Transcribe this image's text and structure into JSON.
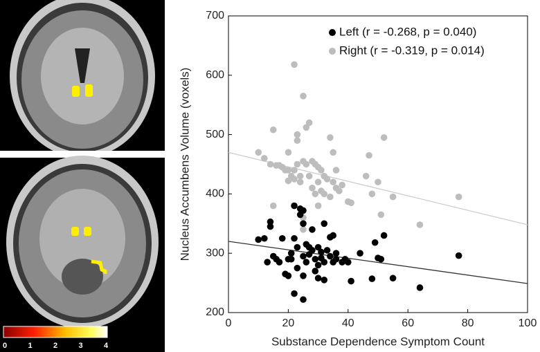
{
  "colorbar": {
    "ticks": [
      0,
      1,
      2,
      3,
      4
    ]
  },
  "chart_data": {
    "type": "scatter",
    "x_label": "Substance Dependence Symptom Count",
    "y_label": "Nucleus Accumbens Volume (voxels)",
    "xlim": [
      0,
      100
    ],
    "xticks": [
      0,
      20,
      40,
      60,
      80,
      100
    ],
    "ylim": [
      200,
      700
    ],
    "yticks": [
      200,
      300,
      400,
      500,
      600,
      700
    ],
    "legend": "top-right",
    "series": [
      {
        "name": "Left (r = -0.268, p = 0.040)",
        "color": "#000000",
        "line_color": "#333333",
        "fit": {
          "x": [
            0,
            100
          ],
          "y": [
            320,
            249
          ]
        },
        "x": [
          10,
          12,
          13,
          14,
          14,
          15,
          16,
          17,
          18,
          19,
          20,
          20,
          21,
          21,
          22,
          22,
          22,
          23,
          23,
          24,
          24,
          25,
          25,
          25,
          25,
          25,
          26,
          26,
          27,
          27,
          28,
          28,
          29,
          29,
          30,
          30,
          30,
          31,
          31,
          32,
          32,
          32,
          33,
          34,
          34,
          35,
          35,
          36,
          38,
          39,
          40,
          41,
          48,
          49,
          50,
          51,
          52,
          55,
          64,
          77,
          44,
          36
        ],
        "values": [
          323,
          325,
          285,
          345,
          353,
          295,
          290,
          285,
          325,
          265,
          290,
          262,
          300,
          290,
          380,
          232,
          325,
          310,
          275,
          375,
          365,
          372,
          350,
          222,
          262,
          295,
          315,
          285,
          310,
          298,
          305,
          340,
          290,
          270,
          310,
          258,
          280,
          302,
          292,
          350,
          255,
          285,
          305,
          327,
          295,
          330,
          285,
          300,
          285,
          290,
          285,
          253,
          257,
          318,
          292,
          290,
          330,
          258,
          242,
          296,
          300,
          290
        ]
      },
      {
        "name": "Right (r = -0.319, p = 0.014)",
        "color": "#bdbdbd",
        "line_color": "#cccccc",
        "fit": {
          "x": [
            0,
            100
          ],
          "y": [
            470,
            348
          ]
        },
        "x": [
          10,
          12,
          14,
          15,
          15,
          16,
          17,
          18,
          19,
          20,
          20,
          21,
          22,
          22,
          22,
          23,
          23,
          23,
          24,
          24,
          25,
          25,
          25,
          25,
          26,
          26,
          27,
          27,
          28,
          28,
          29,
          29,
          30,
          30,
          30,
          31,
          31,
          32,
          32,
          33,
          34,
          34,
          35,
          35,
          36,
          37,
          38,
          40,
          41,
          47,
          48,
          50,
          51,
          52,
          55,
          64,
          77,
          46,
          20,
          36
        ],
        "values": [
          470,
          460,
          450,
          508,
          380,
          448,
          448,
          445,
          440,
          422,
          440,
          430,
          618,
          425,
          440,
          500,
          490,
          450,
          430,
          420,
          565,
          455,
          360,
          340,
          512,
          450,
          520,
          430,
          455,
          410,
          450,
          400,
          445,
          420,
          380,
          440,
          405,
          430,
          400,
          425,
          495,
          395,
          470,
          420,
          410,
          405,
          415,
          387,
          385,
          465,
          400,
          420,
          365,
          495,
          395,
          348,
          395,
          430,
          470,
          440
        ]
      }
    ]
  }
}
